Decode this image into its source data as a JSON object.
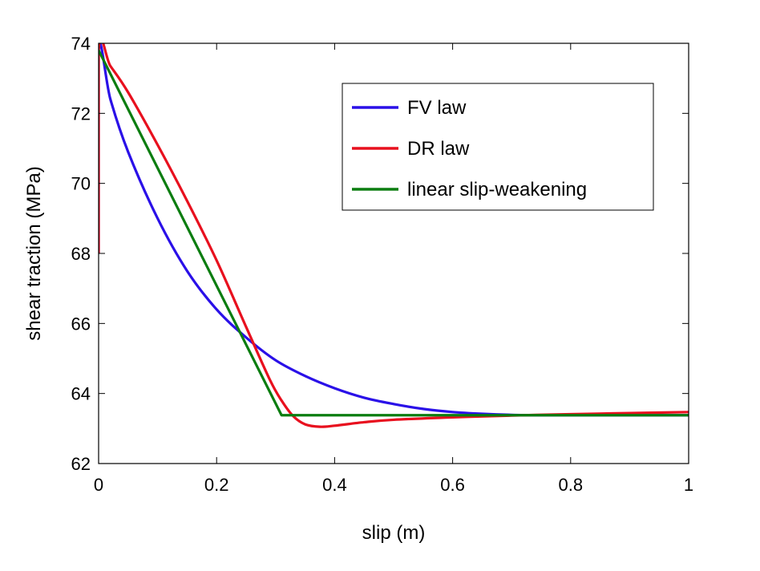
{
  "chart_data": {
    "type": "line",
    "title": "",
    "xlabel": "slip (m)",
    "ylabel": "shear traction (MPa)",
    "xlim": [
      0,
      1
    ],
    "ylim": [
      62,
      74
    ],
    "x_ticks": [
      0,
      0.2,
      0.4,
      0.6,
      0.8,
      1
    ],
    "x_tick_labels": [
      "0",
      "0.2",
      "0.4",
      "0.6",
      "0.8",
      "1"
    ],
    "y_ticks": [
      62,
      64,
      66,
      68,
      70,
      72,
      74
    ],
    "y_tick_labels": [
      "62",
      "64",
      "66",
      "68",
      "70",
      "72",
      "74"
    ],
    "grid": false,
    "legend_position": "top-right",
    "series": [
      {
        "name": "FV law",
        "color": "#2a10e8",
        "x": [
          0,
          0,
          0.02,
          0.05,
          0.1,
          0.15,
          0.2,
          0.25,
          0.3,
          0.35,
          0.4,
          0.45,
          0.5,
          0.55,
          0.6,
          0.65,
          0.7,
          0.75,
          0.8,
          0.9,
          1.0
        ],
        "y": [
          68.0,
          73.8,
          72.4,
          70.9,
          69.0,
          67.5,
          66.4,
          65.6,
          64.95,
          64.5,
          64.15,
          63.88,
          63.7,
          63.56,
          63.47,
          63.42,
          63.39,
          63.38,
          63.38,
          63.38,
          63.38
        ]
      },
      {
        "name": "DR law",
        "color": "#e8101e",
        "x": [
          0,
          0,
          0.02,
          0.05,
          0.1,
          0.15,
          0.2,
          0.25,
          0.29,
          0.31,
          0.33,
          0.35,
          0.375,
          0.4,
          0.45,
          0.5,
          0.6,
          0.7,
          0.8,
          0.9,
          1.0
        ],
        "y": [
          68.0,
          73.8,
          73.35,
          72.6,
          71.1,
          69.5,
          67.8,
          65.9,
          64.4,
          63.8,
          63.35,
          63.12,
          63.05,
          63.08,
          63.18,
          63.25,
          63.32,
          63.37,
          63.41,
          63.44,
          63.47
        ]
      },
      {
        "name": "linear slip-weakening",
        "color": "#0b7d10",
        "x": [
          0,
          0.31,
          1.0
        ],
        "y": [
          73.8,
          63.38,
          63.38
        ]
      }
    ]
  }
}
